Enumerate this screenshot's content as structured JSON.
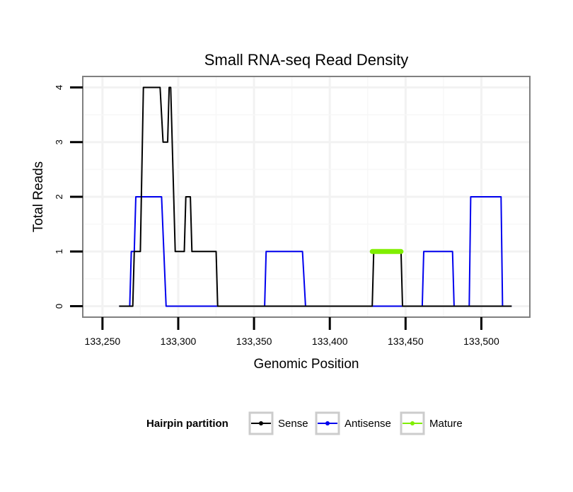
{
  "chart_data": {
    "type": "line",
    "title": "Small RNA-seq Read Density",
    "xlabel": "Genomic Position",
    "ylabel": "Total Reads",
    "xlim": [
      133237,
      133532
    ],
    "ylim": [
      -0.2,
      4.2
    ],
    "x_ticks": [
      133250,
      133300,
      133350,
      133400,
      133450,
      133500
    ],
    "x_tick_labels": [
      "133,250",
      "133,300",
      "133,350",
      "133,400",
      "133,450",
      "133,500"
    ],
    "y_ticks": [
      0,
      1,
      2,
      3,
      4
    ],
    "y_tick_labels": [
      "0",
      "1",
      "2",
      "3",
      "4"
    ],
    "grid": true,
    "legend": {
      "title": "Hairpin partition",
      "position": "bottom",
      "entries": [
        "Sense",
        "Antisense",
        "Mature"
      ]
    },
    "series": [
      {
        "name": "Sense",
        "color": "#000000",
        "x": [
          133261,
          133270,
          133271,
          133275,
          133277,
          133288,
          133290,
          133293,
          133294,
          133295,
          133298,
          133304,
          133305,
          133308,
          133309,
          133311,
          133325,
          133326,
          133428,
          133429,
          133447,
          133448,
          133520
        ],
        "y": [
          0,
          0,
          1,
          1,
          4,
          4,
          3,
          3,
          4,
          4,
          1,
          1,
          2,
          2,
          1,
          1,
          1,
          0,
          0,
          1,
          1,
          0,
          0
        ]
      },
      {
        "name": "Antisense",
        "color": "#0000ee",
        "x": [
          133261,
          133268,
          133269,
          133271,
          133272,
          133289,
          133292,
          133357,
          133358,
          133382,
          133384,
          133428,
          133430,
          133447,
          133448,
          133461,
          133462,
          133481,
          133482,
          133492,
          133493,
          133513,
          133514,
          133520
        ],
        "y": [
          0,
          0,
          1,
          1,
          2,
          2,
          0,
          0,
          1,
          1,
          0,
          0,
          0,
          0,
          0,
          0,
          1,
          1,
          0,
          0,
          2,
          2,
          0,
          0
        ]
      },
      {
        "name": "Mature",
        "color": "#80ee00",
        "x": [
          133428,
          133447
        ],
        "y": [
          1,
          1
        ]
      }
    ]
  }
}
